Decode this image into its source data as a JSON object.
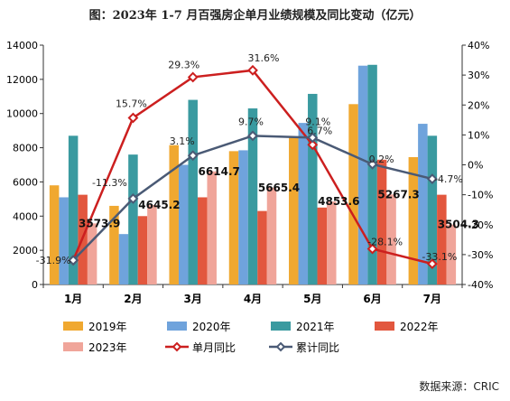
{
  "title": "图：2023年 1-7 月百强房企单月业绩规模及同比变动（亿元）",
  "source": "数据来源：CRIC",
  "chart_data": {
    "type": "bar",
    "categories": [
      "1月",
      "2月",
      "3月",
      "4月",
      "5月",
      "6月",
      "7月"
    ],
    "ylim": [
      0,
      14000
    ],
    "yticks": [
      "0",
      "2000",
      "4000",
      "6000",
      "8000",
      "10000",
      "12000",
      "14000"
    ],
    "y2lim": [
      -40,
      40
    ],
    "y2ticks": [
      "-40%",
      "-30%",
      "-20%",
      "-10%",
      "0%",
      "10%",
      "20%",
      "30%",
      "40%"
    ],
    "colors": {
      "2019年": "#f0a830",
      "2020年": "#6fa3dc",
      "2021年": "#3a9aa0",
      "2022年": "#e2573e",
      "2023年": "#f0a59a",
      "单月同比": "#cc1f1f",
      "累计同比": "#4a5a75"
    },
    "series": [
      {
        "name": "2019年",
        "values": [
          5800,
          4600,
          8150,
          7800,
          8600,
          10550,
          7450
        ]
      },
      {
        "name": "2020年",
        "values": [
          5100,
          2950,
          7000,
          7850,
          9450,
          12800,
          9400
        ]
      },
      {
        "name": "2021年",
        "values": [
          8700,
          7600,
          10800,
          10300,
          11150,
          12850,
          8700
        ]
      },
      {
        "name": "2022年",
        "values": [
          5250,
          4000,
          5100,
          4300,
          4500,
          7300,
          5250
        ]
      },
      {
        "name": "2023年",
        "values": [
          3573.9,
          4645.2,
          6614.7,
          5665.4,
          4853.6,
          5267.3,
          3504.3
        ]
      }
    ],
    "bar_labels": [
      "3573.9",
      "4645.2",
      "6614.7",
      "5665.4",
      "4853.6",
      "5267.3",
      "3504.3"
    ],
    "lines": [
      {
        "name": "单月同比",
        "values": [
          -31.9,
          15.7,
          29.3,
          31.6,
          6.7,
          -28.1,
          -33.1
        ],
        "labels": [
          "-31.9%",
          "15.7%",
          "29.3%",
          "31.6%",
          "6.7%",
          "-28.1%",
          "-33.1%"
        ]
      },
      {
        "name": "累计同比",
        "values": [
          -31.9,
          -11.3,
          3.1,
          9.7,
          9.1,
          0.2,
          -4.7
        ],
        "labels": [
          "",
          "-11.3%",
          "3.1%",
          "9.7%",
          "9.1%",
          "0.2%",
          "-4.7%"
        ]
      }
    ],
    "legend": [
      "2019年",
      "2020年",
      "2021年",
      "2022年",
      "2023年",
      "单月同比",
      "累计同比"
    ]
  }
}
